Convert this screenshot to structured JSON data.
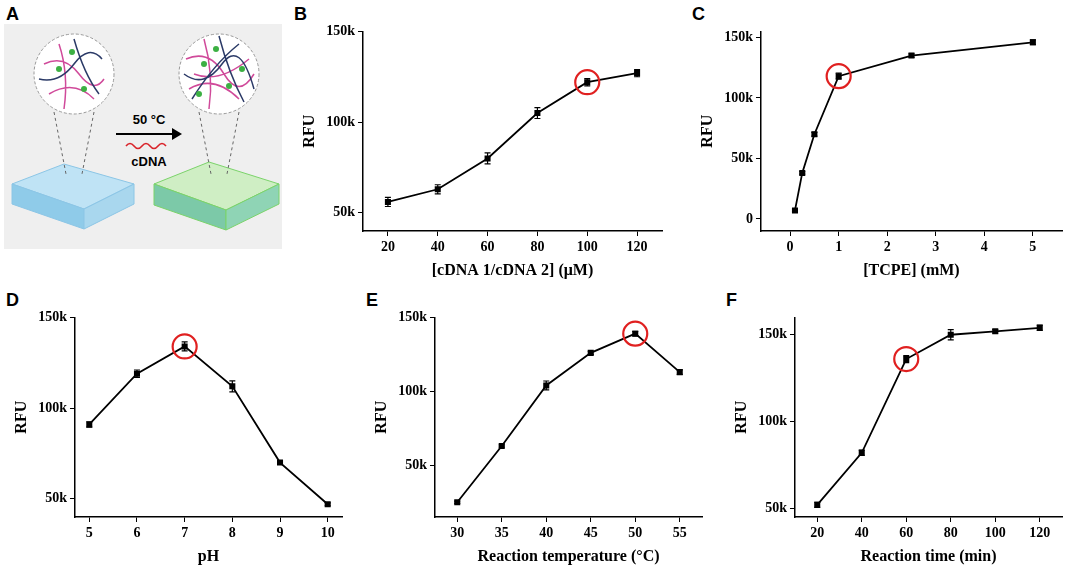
{
  "diagram": {
    "panel": "A",
    "condition": "50 °C",
    "reagent": "cDNA"
  },
  "chart_data": [
    {
      "panel": "B",
      "type": "line",
      "marker": "rect",
      "color": "#000000",
      "grid": false,
      "x_label": "[cDNA 1/cDNA 2] (μM)",
      "y_label": "RFU",
      "x": [
        20,
        40,
        60,
        80,
        100,
        120
      ],
      "values": [
        56000,
        63000,
        80000,
        105000,
        122000,
        127000
      ],
      "errors": [
        2500,
        2500,
        3000,
        3000,
        2000,
        2000
      ],
      "highlight": 100,
      "xlim": [
        10,
        130
      ],
      "xticks": [
        20,
        40,
        60,
        80,
        100,
        120
      ],
      "ylim": [
        40000,
        150000
      ],
      "yticks": [
        {
          "value": 50000,
          "label": "50k"
        },
        {
          "value": 100000,
          "label": "100k"
        },
        {
          "value": 150000,
          "label": "150k"
        }
      ]
    },
    {
      "panel": "C",
      "type": "line",
      "marker": "rect",
      "color": "#000000",
      "grid": false,
      "x_label": "[TCPE] (mM)",
      "y_label": "RFU",
      "x": [
        0.1,
        0.25,
        0.5,
        1,
        2.5,
        5
      ],
      "values": [
        7000,
        38000,
        70000,
        118000,
        135000,
        146000
      ],
      "errors": [
        1000,
        1000,
        1500,
        2500,
        1500,
        2000
      ],
      "highlight": 1,
      "xlim": [
        -0.6,
        5.6
      ],
      "xticks": [
        0,
        1,
        2,
        3,
        4,
        5
      ],
      "ylim": [
        -10000,
        155000
      ],
      "yticks": [
        0,
        {
          "value": 50000,
          "label": "50k"
        },
        {
          "value": 100000,
          "label": "100k"
        },
        {
          "value": 150000,
          "label": "150k"
        }
      ]
    },
    {
      "panel": "D",
      "type": "line",
      "marker": "rect",
      "color": "#000000",
      "grid": false,
      "x_label": "pH",
      "y_label": "RFU",
      "x": [
        5,
        6,
        7,
        8,
        9,
        10
      ],
      "values": [
        91000,
        119000,
        134000,
        112000,
        70000,
        47000
      ],
      "errors": [
        1500,
        2000,
        2500,
        3000,
        1000,
        800
      ],
      "highlight": 7,
      "xlim": [
        4.7,
        10.3
      ],
      "xticks": [
        5,
        6,
        7,
        8,
        9,
        10
      ],
      "ylim": [
        40000,
        150000
      ],
      "yticks": [
        {
          "value": 50000,
          "label": "50k"
        },
        {
          "value": 100000,
          "label": "100k"
        },
        {
          "value": 150000,
          "label": "150k"
        }
      ]
    },
    {
      "panel": "E",
      "type": "line",
      "marker": "rect",
      "color": "#000000",
      "grid": false,
      "x_label": "Reaction temperature (°C)",
      "y_label": "RFU",
      "x": [
        30,
        35,
        40,
        45,
        50,
        55
      ],
      "values": [
        25000,
        63000,
        104000,
        126000,
        139000,
        113000
      ],
      "errors": [
        800,
        800,
        3000,
        1000,
        1500,
        1500
      ],
      "highlight": 50,
      "xlim": [
        27.5,
        57.5
      ],
      "xticks": [
        30,
        35,
        40,
        45,
        50,
        55
      ],
      "ylim": [
        15000,
        150000
      ],
      "yticks": [
        {
          "value": 50000,
          "label": "50k"
        },
        {
          "value": 100000,
          "label": "100k"
        },
        {
          "value": 150000,
          "label": "150k"
        }
      ]
    },
    {
      "panel": "F",
      "type": "line",
      "marker": "rect",
      "color": "#000000",
      "grid": false,
      "x_label": "Reaction time (min)",
      "y_label": "RFU",
      "x": [
        20,
        40,
        60,
        80,
        100,
        120
      ],
      "values": [
        52000,
        82000,
        136000,
        150000,
        152000,
        154000
      ],
      "errors": [
        1500,
        1500,
        2000,
        3000,
        1000,
        1500
      ],
      "highlight": 60,
      "xlim": [
        10,
        130
      ],
      "xticks": [
        20,
        40,
        60,
        80,
        100,
        120
      ],
      "ylim": [
        45000,
        160000
      ],
      "yticks": [
        {
          "value": 50000,
          "label": "50k"
        },
        {
          "value": 100000,
          "label": "100k"
        },
        {
          "value": 150000,
          "label": "150k"
        }
      ]
    }
  ]
}
